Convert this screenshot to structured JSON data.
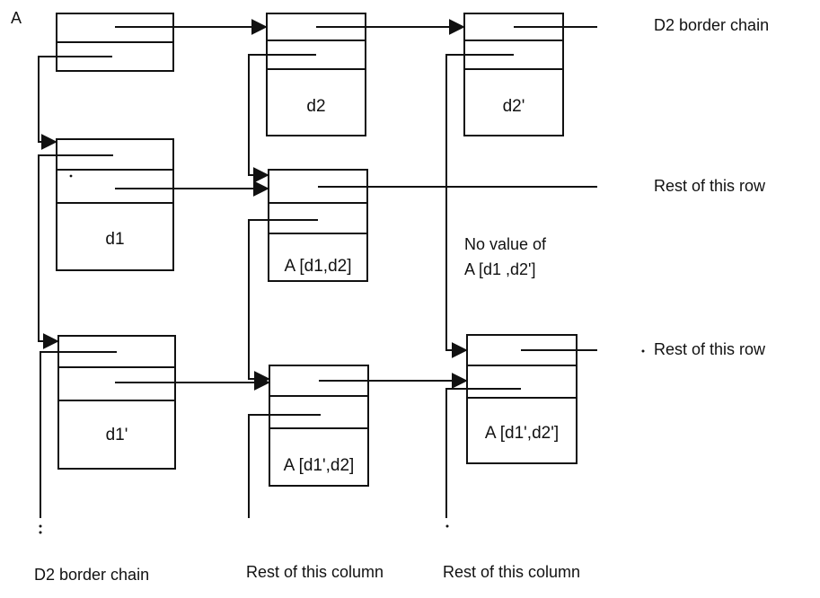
{
  "diagram": {
    "matrix_name": "A",
    "side_labels": {
      "top_right": "D2 border chain",
      "row1_right": "Rest of this row",
      "row2_right": "Rest of this row",
      "bottom_left": "D2 border chain",
      "bottom_mid": "Rest of this column",
      "bottom_right": "Rest of this column"
    },
    "cells": {
      "d2": "d2",
      "d2_prime": "d2'",
      "d1": "d1",
      "d1_prime": "d1'",
      "a_d1_d2": "A [d1,d2]",
      "a_d1p_d2": "A [d1',d2]",
      "a_d1p_d2p": "A [d1',d2']"
    },
    "note": {
      "line1": "No value of",
      "line2": "A [d1 ,d2']"
    }
  }
}
